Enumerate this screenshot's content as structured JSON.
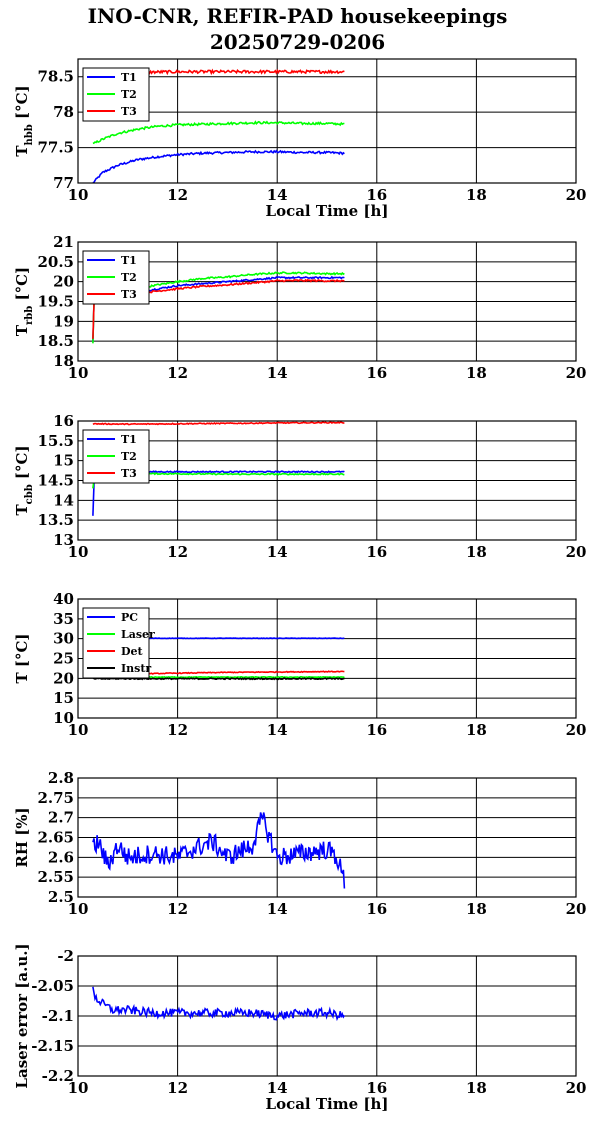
{
  "title_line1": "INO-CNR, REFIR-PAD housekeepings",
  "title_line2": "20250729-0206",
  "colors": {
    "blue": "#0000ff",
    "green": "#00ff00",
    "red": "#ff0000",
    "black": "#000000",
    "grid": "#000000"
  },
  "chart_data": [
    {
      "type": "line",
      "ylabel_main": "T",
      "ylabel_sub": "hbb",
      "ylabel_unit": "[°C]",
      "xlabel": "Local Time [h]",
      "xlim": [
        10,
        20
      ],
      "ylim": [
        77,
        78.75
      ],
      "xticks": [
        10,
        12,
        14,
        16,
        18,
        20
      ],
      "xtick_labels": [
        "10",
        "12",
        "14",
        "16",
        "18",
        "20"
      ],
      "yticks": [
        77,
        77.5,
        78,
        78.5
      ],
      "ytick_labels": [
        "77",
        "77.5",
        "78",
        "78.5"
      ],
      "grid": true,
      "legend": "top-left",
      "series": [
        {
          "name": "T1",
          "color": "#0000ff",
          "x": [
            10.3,
            10.5,
            10.8,
            11.2,
            11.6,
            12.0,
            12.5,
            13.0,
            13.5,
            14.0,
            14.5,
            15.0,
            15.35
          ],
          "y": [
            77.0,
            77.15,
            77.25,
            77.33,
            77.37,
            77.4,
            77.42,
            77.43,
            77.44,
            77.44,
            77.43,
            77.43,
            77.42
          ],
          "noise": 0.015
        },
        {
          "name": "T2",
          "color": "#00ff00",
          "x": [
            10.3,
            10.5,
            10.8,
            11.2,
            11.6,
            12.0,
            12.5,
            13.0,
            13.5,
            14.0,
            14.5,
            15.0,
            15.35
          ],
          "y": [
            77.55,
            77.62,
            77.7,
            77.76,
            77.8,
            77.82,
            77.83,
            77.84,
            77.85,
            77.85,
            77.84,
            77.84,
            77.83
          ],
          "noise": 0.015
        },
        {
          "name": "T3",
          "color": "#ff0000",
          "x": [
            10.3,
            11.0,
            12.0,
            13.0,
            14.0,
            15.0,
            15.35
          ],
          "y": [
            78.55,
            78.56,
            78.57,
            78.57,
            78.57,
            78.57,
            78.57
          ],
          "noise": 0.02
        }
      ]
    },
    {
      "type": "line",
      "ylabel_main": "T",
      "ylabel_sub": "rbb",
      "ylabel_unit": "[°C]",
      "xlabel": "",
      "xlim": [
        10,
        20
      ],
      "ylim": [
        18,
        21
      ],
      "xticks": [
        10,
        12,
        14,
        16,
        18,
        20
      ],
      "xtick_labels": [
        "10",
        "12",
        "14",
        "16",
        "18",
        "20"
      ],
      "yticks": [
        18,
        18.5,
        19,
        19.5,
        20,
        20.5,
        21
      ],
      "ytick_labels": [
        "18",
        "18.5",
        "19",
        "19.5",
        "20",
        "20.5",
        "21"
      ],
      "grid": true,
      "legend": "top-left",
      "series": [
        {
          "name": "T1",
          "color": "#0000ff",
          "x": [
            10.3,
            10.32,
            10.4,
            10.6,
            11.0,
            11.5,
            12.0,
            12.5,
            13.0,
            13.5,
            14.0,
            14.5,
            15.0,
            15.35
          ],
          "y": [
            18.5,
            19.5,
            19.55,
            19.6,
            19.7,
            19.8,
            19.9,
            19.95,
            20.0,
            20.05,
            20.1,
            20.1,
            20.1,
            20.1
          ],
          "noise": 0.02
        },
        {
          "name": "T2",
          "color": "#00ff00",
          "x": [
            10.3,
            10.32,
            10.4,
            10.6,
            11.0,
            11.5,
            12.0,
            12.5,
            13.0,
            13.5,
            14.0,
            14.5,
            15.0,
            15.35
          ],
          "y": [
            18.45,
            19.5,
            19.55,
            19.62,
            19.75,
            19.9,
            20.0,
            20.08,
            20.12,
            20.18,
            20.22,
            20.22,
            20.2,
            20.2
          ],
          "noise": 0.02
        },
        {
          "name": "T3",
          "color": "#ff0000",
          "x": [
            10.3,
            10.32,
            10.4,
            10.6,
            11.0,
            11.5,
            12.0,
            12.5,
            13.0,
            13.5,
            14.0,
            14.5,
            15.0,
            15.35
          ],
          "y": [
            18.55,
            19.45,
            19.5,
            19.55,
            19.65,
            19.75,
            19.82,
            19.88,
            19.92,
            19.97,
            20.02,
            20.03,
            20.02,
            20.02
          ],
          "noise": 0.02
        }
      ]
    },
    {
      "type": "line",
      "ylabel_main": "T",
      "ylabel_sub": "cbb",
      "ylabel_unit": "[°C]",
      "xlabel": "",
      "xlim": [
        10,
        20
      ],
      "ylim": [
        13,
        16
      ],
      "xticks": [
        10,
        12,
        14,
        16,
        18,
        20
      ],
      "xtick_labels": [
        "10",
        "12",
        "14",
        "16",
        "18",
        "20"
      ],
      "yticks": [
        13,
        13.5,
        14,
        14.5,
        15,
        15.5,
        16
      ],
      "ytick_labels": [
        "13",
        "13.5",
        "14",
        "14.5",
        "15",
        "15.5",
        "16"
      ],
      "grid": true,
      "legend": "top-left",
      "series": [
        {
          "name": "T1",
          "color": "#0000ff",
          "x": [
            10.3,
            10.32,
            10.36,
            10.5,
            11.0,
            12.0,
            13.0,
            14.0,
            15.0,
            15.35
          ],
          "y": [
            13.6,
            14.4,
            14.7,
            14.72,
            14.72,
            14.72,
            14.72,
            14.72,
            14.72,
            14.72
          ],
          "noise": 0.015
        },
        {
          "name": "T2",
          "color": "#00ff00",
          "x": [
            10.3,
            10.32,
            10.36,
            10.5,
            11.0,
            12.0,
            13.0,
            14.0,
            15.0,
            15.35
          ],
          "y": [
            14.3,
            14.5,
            14.65,
            14.67,
            14.67,
            14.67,
            14.66,
            14.66,
            14.66,
            14.66
          ],
          "noise": 0.015
        },
        {
          "name": "T3",
          "color": "#ff0000",
          "x": [
            10.3,
            11.0,
            12.0,
            13.0,
            14.0,
            15.0,
            15.35
          ],
          "y": [
            15.93,
            15.92,
            15.93,
            15.94,
            15.95,
            15.96,
            15.96
          ],
          "noise": 0.012
        }
      ]
    },
    {
      "type": "line",
      "ylabel_main": "T",
      "ylabel_sub": "",
      "ylabel_unit": "[°C]",
      "xlabel": "",
      "xlim": [
        10,
        20
      ],
      "ylim": [
        10,
        40
      ],
      "xticks": [
        10,
        12,
        14,
        16,
        18,
        20
      ],
      "xtick_labels": [
        "10",
        "12",
        "14",
        "16",
        "18",
        "20"
      ],
      "yticks": [
        10,
        15,
        20,
        25,
        30,
        35,
        40
      ],
      "ytick_labels": [
        "10",
        "15",
        "20",
        "25",
        "30",
        "35",
        "40"
      ],
      "grid": true,
      "legend": "top-left",
      "series": [
        {
          "name": "PC",
          "color": "#0000ff",
          "x": [
            10.3,
            15.35
          ],
          "y": [
            30.1,
            30.1
          ],
          "noise": 0.05
        },
        {
          "name": "Laser",
          "color": "#00ff00",
          "x": [
            10.3,
            15.35
          ],
          "y": [
            20.3,
            20.3
          ],
          "noise": 0.1
        },
        {
          "name": "Det",
          "color": "#ff0000",
          "x": [
            10.3,
            11.0,
            11.5,
            12.0,
            13.0,
            14.0,
            15.0,
            15.35
          ],
          "y": [
            20.8,
            20.9,
            21.2,
            21.3,
            21.5,
            21.6,
            21.7,
            21.7
          ],
          "noise": 0.1
        },
        {
          "name": "Instr",
          "color": "#000000",
          "x": [
            10.3,
            15.35
          ],
          "y": [
            19.9,
            19.9
          ],
          "noise": 0.15
        }
      ]
    },
    {
      "type": "line",
      "ylabel_main": "RH [%]",
      "ylabel_sub": "",
      "ylabel_unit": "",
      "xlabel": "",
      "xlim": [
        10,
        20
      ],
      "ylim": [
        2.5,
        2.8
      ],
      "xticks": [
        10,
        12,
        14,
        16,
        18,
        20
      ],
      "xtick_labels": [
        "10",
        "12",
        "14",
        "16",
        "18",
        "20"
      ],
      "yticks": [
        2.5,
        2.55,
        2.6,
        2.65,
        2.7,
        2.75,
        2.8
      ],
      "ytick_labels": [
        "2.5",
        "2.55",
        "2.6",
        "2.65",
        "2.7",
        "2.75",
        "2.8"
      ],
      "grid": true,
      "legend": "none",
      "series": [
        {
          "name": "",
          "color": "#0000ff",
          "x": [
            10.3,
            10.4,
            10.6,
            10.8,
            11.0,
            11.5,
            12.0,
            12.3,
            12.7,
            13.0,
            13.5,
            13.7,
            14.0,
            14.5,
            15.0,
            15.2,
            15.35
          ],
          "y": [
            2.62,
            2.64,
            2.58,
            2.63,
            2.6,
            2.61,
            2.6,
            2.62,
            2.64,
            2.6,
            2.63,
            2.7,
            2.6,
            2.61,
            2.62,
            2.6,
            2.54
          ],
          "noise": 0.025
        }
      ]
    },
    {
      "type": "line",
      "ylabel_main": "Laser error [a.u.]",
      "ylabel_sub": "",
      "ylabel_unit": "",
      "xlabel": "Local Time [h]",
      "xlim": [
        10,
        20
      ],
      "ylim": [
        -2.2,
        -2.0
      ],
      "xticks": [
        10,
        12,
        14,
        16,
        18,
        20
      ],
      "xtick_labels": [
        "10",
        "12",
        "14",
        "16",
        "18",
        "20"
      ],
      "yticks": [
        -2.2,
        -2.15,
        -2.1,
        -2.05,
        -2.0
      ],
      "ytick_labels": [
        "-2.2",
        "-2.15",
        "-2.1",
        "-2.05",
        "-2"
      ],
      "grid": true,
      "legend": "none",
      "series": [
        {
          "name": "",
          "color": "#0000ff",
          "x": [
            10.3,
            10.35,
            10.5,
            10.7,
            11.0,
            11.5,
            12.0,
            12.5,
            13.0,
            13.5,
            14.0,
            14.5,
            15.0,
            15.35
          ],
          "y": [
            -2.05,
            -2.07,
            -2.08,
            -2.09,
            -2.09,
            -2.095,
            -2.095,
            -2.095,
            -2.095,
            -2.095,
            -2.1,
            -2.095,
            -2.095,
            -2.1
          ],
          "noise": 0.007
        }
      ]
    }
  ]
}
